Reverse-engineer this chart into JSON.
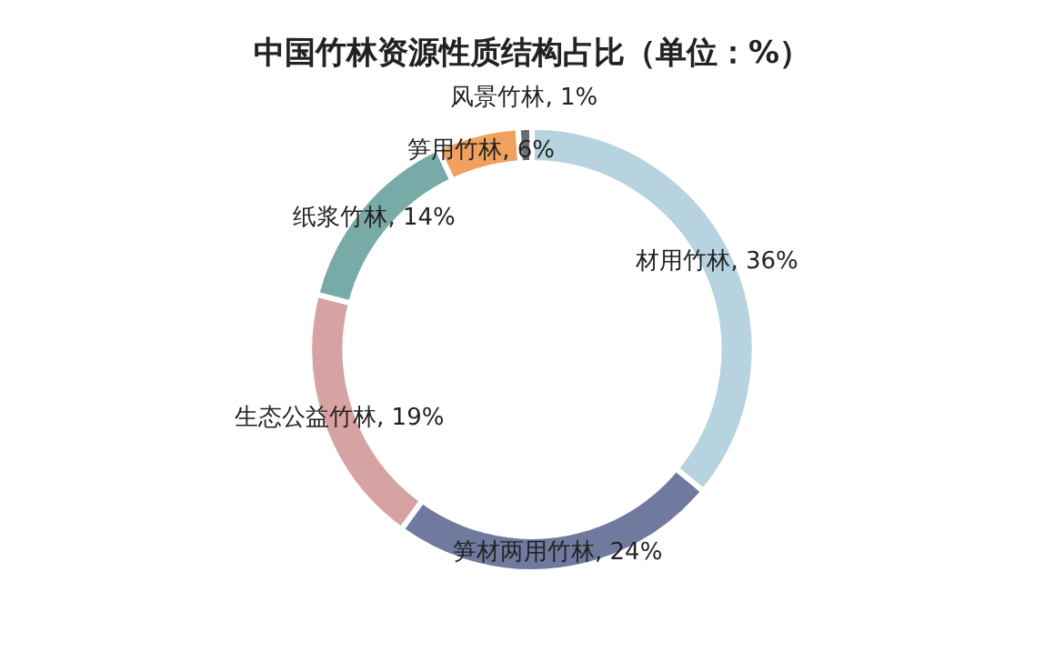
{
  "chart_data": {
    "type": "donut",
    "title": "中国竹林资源性质结构占比（单位：%）",
    "categories": [
      "材用竹林",
      "笋材两用竹林",
      "生态公益竹林",
      "纸浆竹林",
      "笋用竹林",
      "风景竹林"
    ],
    "values": [
      36,
      24,
      19,
      14,
      6,
      1
    ],
    "value_labels": [
      "36%",
      "24%",
      "19%",
      "14%",
      "6%",
      "1%"
    ],
    "colors": [
      "#b7d3e0",
      "#6f7a9e",
      "#d7a2a2",
      "#78aaa7",
      "#f0a15e",
      "#666d70"
    ],
    "legend": false
  }
}
